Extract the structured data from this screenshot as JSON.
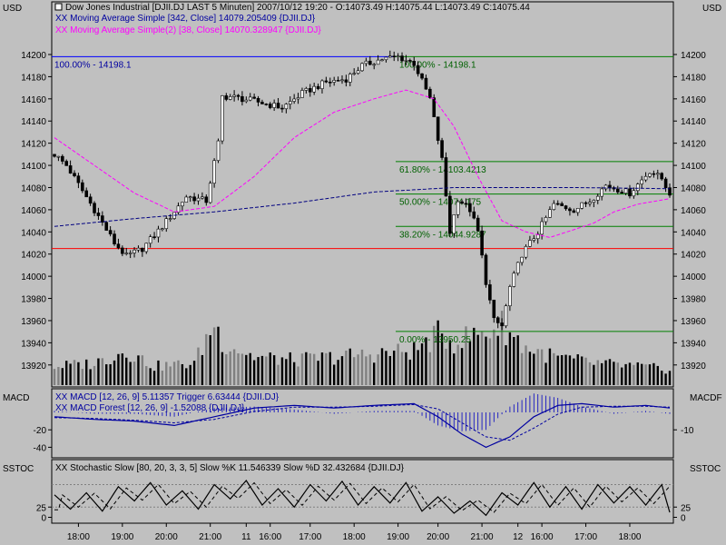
{
  "colors": {
    "background": "#c0c0c0",
    "axis": "#000000",
    "candle": "#000000",
    "ma342": "#000080",
    "ma38": "#ff00ff",
    "fib": "#008000",
    "red_line": "#ff0000",
    "blue_line": "#0000ff",
    "volume_up": "#000000",
    "volume_down": "#808080",
    "macd": "#0000a0",
    "stoch": "#000000"
  },
  "header": {
    "currency_left": "USD",
    "currency_right": "USD",
    "title": "Dow Jones Industrial [DJII.DJ LAST 5 Minuten] 2007/10/12 19:20 - O:14073.49 H:14075.44 L:14073.49 C:14075.44",
    "ma342_label": "XX Moving Average Simple [342, Close] 14079.205409 {DJII.DJ}",
    "ma38_label": "XX Moving Average Simple(2) [38, Close] 14070.328947 {DJII.DJ}"
  },
  "macd_panel": {
    "left_label": "MACD",
    "right_label": "MACDF",
    "line1": "XX MACD [12, 26, 9] 5.11357 Trigger 6.63444 {DJII.DJ}",
    "line2": "XX MACD Forest [12, 26, 9] -1.52088 {DJII.DJ}"
  },
  "stoch_panel": {
    "left_label": "SSTOC",
    "right_label": "SSTOC",
    "line1": "XX Stochastic Slow [80, 20, 3, 3, 5] Slow %K 11.546339 Slow %D 32.432684 {DJII.DJ}"
  },
  "chart_data": {
    "type": "candlestick",
    "title": "Dow Jones Industrial [DJII.DJ LAST 5 Minuten]",
    "ylim": [
      13900,
      14220
    ],
    "y_ticks": [
      13920,
      13940,
      13960,
      13980,
      14000,
      14020,
      14040,
      14060,
      14080,
      14100,
      14120,
      14140,
      14160,
      14180,
      14200
    ],
    "x_ticks": [
      "18:00",
      "19:00",
      "20:00",
      "21:00",
      "11",
      "16:00",
      "17:00",
      "18:00",
      "19:00",
      "20:00",
      "21:00",
      "12",
      "16:00",
      "17:00",
      "18:00"
    ],
    "x_tick_index": [
      6,
      17,
      28,
      39,
      48,
      54,
      64,
      75,
      86,
      96,
      107,
      116,
      122,
      133,
      144
    ],
    "n_bars": 155,
    "close_anchors": [
      [
        0,
        14110
      ],
      [
        3,
        14100
      ],
      [
        10,
        14060
      ],
      [
        15,
        14030
      ],
      [
        18,
        14018
      ],
      [
        22,
        14025
      ],
      [
        27,
        14045
      ],
      [
        33,
        14072
      ],
      [
        38,
        14068
      ],
      [
        41,
        14120
      ],
      [
        42,
        14162
      ],
      [
        44,
        14162
      ],
      [
        50,
        14158
      ],
      [
        57,
        14152
      ],
      [
        62,
        14165
      ],
      [
        68,
        14175
      ],
      [
        73,
        14178
      ],
      [
        77,
        14190
      ],
      [
        82,
        14196
      ],
      [
        86,
        14198
      ],
      [
        90,
        14192
      ],
      [
        94,
        14160
      ],
      [
        97,
        14105
      ],
      [
        99,
        14040
      ],
      [
        101,
        14070
      ],
      [
        104,
        14060
      ],
      [
        106,
        14040
      ],
      [
        108,
        13995
      ],
      [
        110,
        13960
      ],
      [
        112,
        13955
      ],
      [
        114,
        13990
      ],
      [
        117,
        14020
      ],
      [
        121,
        14040
      ],
      [
        125,
        14065
      ],
      [
        130,
        14060
      ],
      [
        134,
        14068
      ],
      [
        138,
        14082
      ],
      [
        144,
        14075
      ],
      [
        149,
        14095
      ],
      [
        152,
        14088
      ],
      [
        154,
        14075
      ]
    ],
    "ma342_anchors": [
      [
        0,
        14045
      ],
      [
        20,
        14052
      ],
      [
        40,
        14058
      ],
      [
        60,
        14066
      ],
      [
        80,
        14076
      ],
      [
        100,
        14080
      ],
      [
        130,
        14080
      ],
      [
        154,
        14079
      ]
    ],
    "ma38_anchors": [
      [
        0,
        14125
      ],
      [
        10,
        14100
      ],
      [
        20,
        14075
      ],
      [
        30,
        14058
      ],
      [
        40,
        14063
      ],
      [
        50,
        14090
      ],
      [
        60,
        14125
      ],
      [
        70,
        14148
      ],
      [
        80,
        14160
      ],
      [
        88,
        14168
      ],
      [
        95,
        14160
      ],
      [
        100,
        14135
      ],
      [
        106,
        14090
      ],
      [
        112,
        14050
      ],
      [
        118,
        14040
      ],
      [
        124,
        14035
      ],
      [
        130,
        14042
      ],
      [
        135,
        14048
      ],
      [
        140,
        14058
      ],
      [
        146,
        14065
      ],
      [
        154,
        14070
      ]
    ],
    "volume_anchors": [
      [
        0,
        0.3
      ],
      [
        10,
        0.35
      ],
      [
        18,
        0.55
      ],
      [
        25,
        0.3
      ],
      [
        35,
        0.35
      ],
      [
        40,
        1.0
      ],
      [
        42,
        0.7
      ],
      [
        50,
        0.45
      ],
      [
        60,
        0.4
      ],
      [
        70,
        0.45
      ],
      [
        80,
        0.5
      ],
      [
        90,
        0.55
      ],
      [
        96,
        0.8
      ],
      [
        100,
        0.7
      ],
      [
        108,
        0.85
      ],
      [
        112,
        0.95
      ],
      [
        118,
        0.6
      ],
      [
        125,
        0.45
      ],
      [
        135,
        0.35
      ],
      [
        145,
        0.3
      ],
      [
        154,
        0.25
      ]
    ],
    "volume_unit": "relative 0-1",
    "macd_anchors": [
      [
        0,
        -5
      ],
      [
        10,
        -8
      ],
      [
        20,
        -10
      ],
      [
        30,
        -15
      ],
      [
        40,
        -5
      ],
      [
        50,
        5
      ],
      [
        60,
        8
      ],
      [
        70,
        5
      ],
      [
        80,
        8
      ],
      [
        90,
        10
      ],
      [
        96,
        -5
      ],
      [
        102,
        -25
      ],
      [
        108,
        -40
      ],
      [
        114,
        -28
      ],
      [
        120,
        -5
      ],
      [
        126,
        8
      ],
      [
        132,
        10
      ],
      [
        140,
        6
      ],
      [
        148,
        8
      ],
      [
        154,
        5
      ]
    ],
    "macd_trigger_anchors": [
      [
        0,
        -6
      ],
      [
        10,
        -7
      ],
      [
        20,
        -9
      ],
      [
        30,
        -12
      ],
      [
        40,
        -8
      ],
      [
        50,
        1
      ],
      [
        60,
        6
      ],
      [
        70,
        6
      ],
      [
        80,
        7
      ],
      [
        90,
        9
      ],
      [
        96,
        4
      ],
      [
        102,
        -12
      ],
      [
        108,
        -28
      ],
      [
        114,
        -32
      ],
      [
        120,
        -18
      ],
      [
        126,
        -2
      ],
      [
        132,
        6
      ],
      [
        140,
        7
      ],
      [
        148,
        7
      ],
      [
        154,
        6
      ]
    ],
    "macd_ylim": [
      -50,
      25
    ],
    "macd_ticks": [
      -20,
      -40
    ],
    "macdf_ticks": [
      -10
    ],
    "stoch_anchors": [
      [
        0,
        55
      ],
      [
        4,
        20
      ],
      [
        8,
        60
      ],
      [
        12,
        15
      ],
      [
        16,
        75
      ],
      [
        20,
        40
      ],
      [
        24,
        85
      ],
      [
        28,
        30
      ],
      [
        32,
        65
      ],
      [
        36,
        20
      ],
      [
        40,
        80
      ],
      [
        44,
        45
      ],
      [
        48,
        90
      ],
      [
        52,
        30
      ],
      [
        56,
        70
      ],
      [
        60,
        25
      ],
      [
        64,
        80
      ],
      [
        68,
        40
      ],
      [
        72,
        88
      ],
      [
        76,
        30
      ],
      [
        80,
        75
      ],
      [
        84,
        35
      ],
      [
        88,
        85
      ],
      [
        92,
        15
      ],
      [
        96,
        50
      ],
      [
        100,
        10
      ],
      [
        104,
        40
      ],
      [
        108,
        5
      ],
      [
        112,
        60
      ],
      [
        116,
        30
      ],
      [
        120,
        85
      ],
      [
        124,
        25
      ],
      [
        128,
        75
      ],
      [
        132,
        20
      ],
      [
        136,
        80
      ],
      [
        140,
        35
      ],
      [
        144,
        75
      ],
      [
        148,
        30
      ],
      [
        152,
        80
      ],
      [
        154,
        12
      ]
    ],
    "stoch_ylim": [
      -10,
      110
    ],
    "stoch_ticks": [
      25,
      0
    ],
    "stoch_levels": [
      25,
      80
    ],
    "fib": {
      "high": 14198.1,
      "low": 13950.25,
      "levels": [
        {
          "label": "100.00% - 14198.1",
          "value": 14198.1
        },
        {
          "label": "61.80% - 14103.4213",
          "value": 14103.4213
        },
        {
          "label": "50.00% - 14074.175",
          "value": 14074.175
        },
        {
          "label": "38.20% - 14044.9287",
          "value": 14044.9287
        },
        {
          "label": "0.00% - 13950.25",
          "value": 13950.25
        }
      ],
      "left_label": "100.00% - 14198.1"
    },
    "red_line_value": 14025
  }
}
